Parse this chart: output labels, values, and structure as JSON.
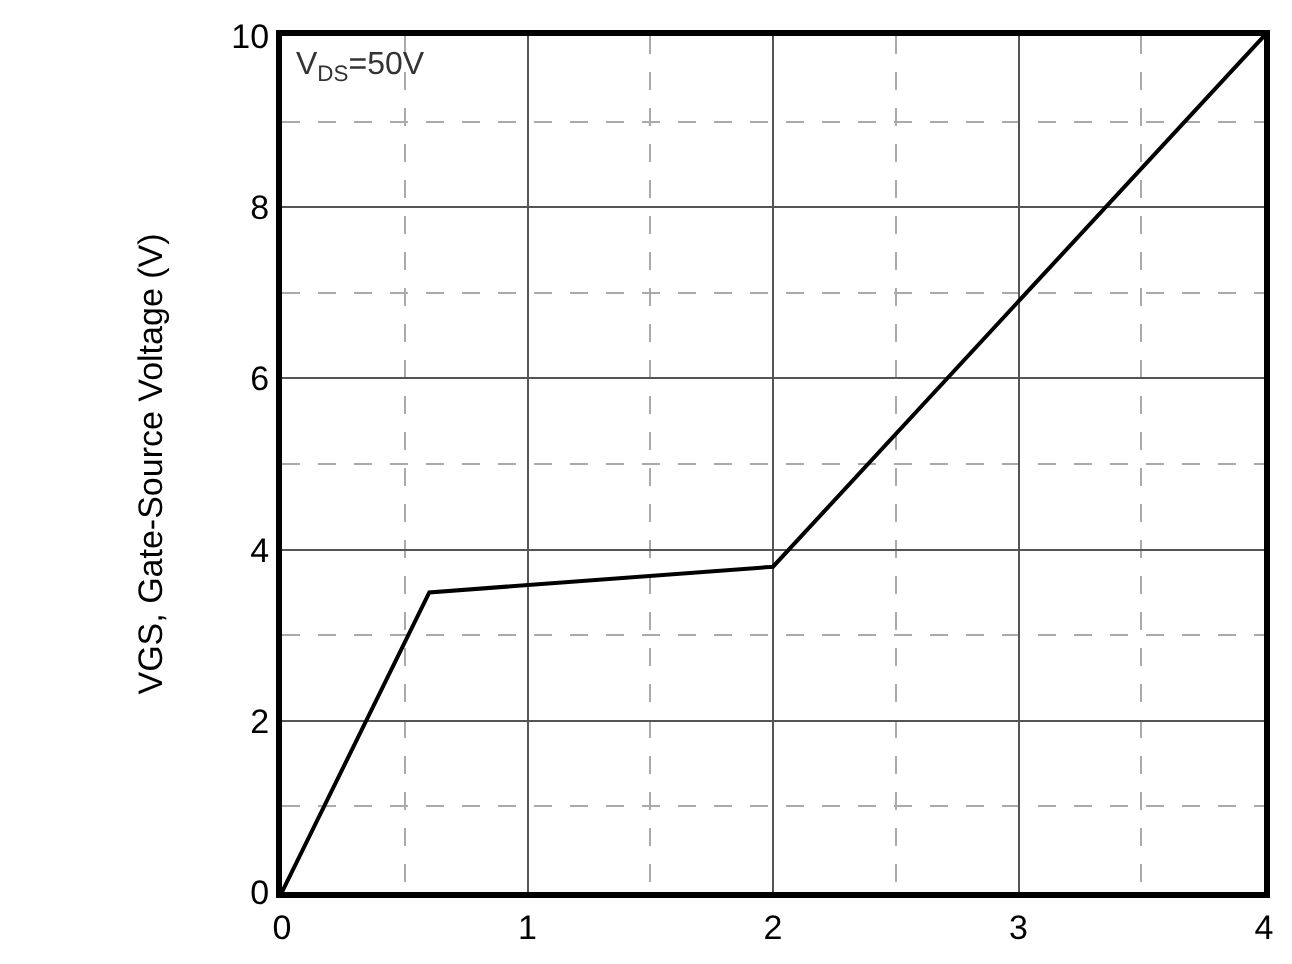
{
  "chart_data": {
    "type": "line",
    "ylabel": "VGS, Gate-Source Voltage (V)",
    "x": [
      0,
      0.6,
      2,
      4
    ],
    "series": [
      {
        "color": "#000000",
        "values": [
          0,
          3.5,
          3.8,
          10
        ]
      }
    ],
    "xlim": [
      0,
      4
    ],
    "xticks": [
      0,
      1,
      2,
      3,
      4
    ],
    "ylim": [
      0,
      10
    ],
    "yticks": [
      0,
      2,
      4,
      6,
      8,
      10
    ],
    "grid": true,
    "legend": false,
    "marker": "none",
    "line_style": "solid",
    "annotations": [
      "V$_{DS}$=50V"
    ]
  }
}
